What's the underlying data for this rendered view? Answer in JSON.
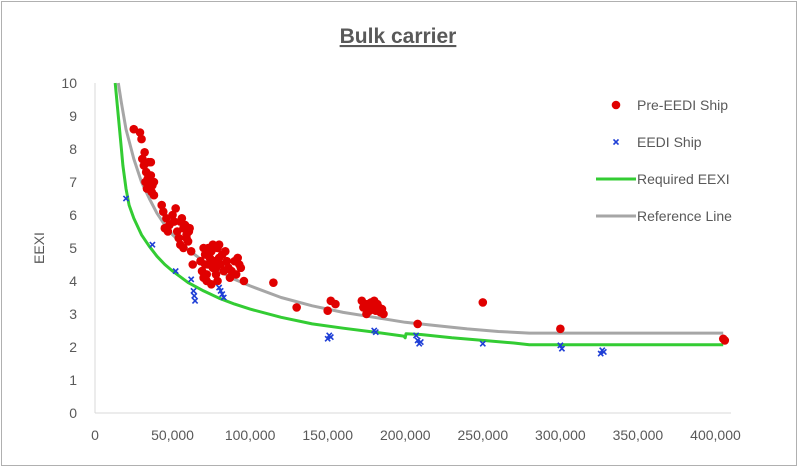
{
  "chart_data": {
    "type": "scatter",
    "title": "Bulk carrier",
    "xlabel": "",
    "ylabel": "EEXI",
    "xlim": [
      0,
      410000
    ],
    "ylim": [
      0,
      10
    ],
    "x_ticks": [
      "0",
      "50,000",
      "100,000",
      "150,000",
      "200,000",
      "250,000",
      "300,000",
      "350,000",
      "400,000"
    ],
    "y_ticks": [
      "0",
      "1",
      "2",
      "3",
      "4",
      "5",
      "6",
      "7",
      "8",
      "9",
      "10"
    ],
    "grid": false,
    "legend_position": "right",
    "series": [
      {
        "name": "Pre-EEDI Ship",
        "kind": "scatter",
        "marker": "circle",
        "color": "#e00000",
        "points": [
          [
            25000,
            8.6
          ],
          [
            29000,
            8.5
          ],
          [
            30000,
            8.3
          ],
          [
            30500,
            7.7
          ],
          [
            31500,
            7.5
          ],
          [
            32000,
            7.9
          ],
          [
            33000,
            7.3
          ],
          [
            34000,
            7.1
          ],
          [
            35000,
            6.9
          ],
          [
            36000,
            7.2
          ],
          [
            37000,
            6.9
          ],
          [
            38000,
            7.0
          ],
          [
            34500,
            7.6
          ],
          [
            33500,
            6.8
          ],
          [
            36500,
            6.7
          ],
          [
            38000,
            6.6
          ],
          [
            36000,
            7.6
          ],
          [
            32500,
            7.0
          ],
          [
            43000,
            6.3
          ],
          [
            44000,
            6.1
          ],
          [
            46000,
            5.9
          ],
          [
            48000,
            5.7
          ],
          [
            50000,
            6.0
          ],
          [
            51000,
            5.8
          ],
          [
            52000,
            6.2
          ],
          [
            53000,
            5.5
          ],
          [
            54000,
            5.3
          ],
          [
            55000,
            5.8
          ],
          [
            56000,
            5.9
          ],
          [
            57000,
            5.6
          ],
          [
            58000,
            5.7
          ],
          [
            59000,
            5.4
          ],
          [
            60000,
            5.2
          ],
          [
            61000,
            5.6
          ],
          [
            62000,
            4.9
          ],
          [
            63000,
            4.5
          ],
          [
            55000,
            5.1
          ],
          [
            57000,
            5.0
          ],
          [
            59000,
            5.3
          ],
          [
            60500,
            5.5
          ],
          [
            47000,
            5.5
          ],
          [
            45000,
            5.6
          ],
          [
            68000,
            4.6
          ],
          [
            69000,
            4.3
          ],
          [
            70000,
            5.0
          ],
          [
            71000,
            4.8
          ],
          [
            72000,
            4.2
          ],
          [
            73000,
            4.5
          ],
          [
            74000,
            4.7
          ],
          [
            75000,
            4.9
          ],
          [
            76000,
            4.4
          ],
          [
            77000,
            4.6
          ],
          [
            78000,
            4.2
          ],
          [
            79000,
            5.0
          ],
          [
            80000,
            4.7
          ],
          [
            81000,
            4.5
          ],
          [
            82000,
            4.8
          ],
          [
            83000,
            4.3
          ],
          [
            84000,
            4.9
          ],
          [
            85000,
            4.6
          ],
          [
            86000,
            4.4
          ],
          [
            87000,
            4.1
          ],
          [
            88000,
            4.3
          ],
          [
            90000,
            4.6
          ],
          [
            91000,
            4.2
          ],
          [
            92000,
            4.7
          ],
          [
            93000,
            4.5
          ],
          [
            94000,
            4.4
          ],
          [
            70000,
            4.1
          ],
          [
            72000,
            4.0
          ],
          [
            75000,
            3.9
          ],
          [
            78000,
            4.4
          ],
          [
            80000,
            5.1
          ],
          [
            76000,
            5.1
          ],
          [
            73000,
            5.0
          ],
          [
            96000,
            4.0
          ],
          [
            71000,
            4.5
          ],
          [
            79000,
            4.0
          ],
          [
            115000,
            3.95
          ],
          [
            130000,
            3.2
          ],
          [
            150000,
            3.1
          ],
          [
            152000,
            3.4
          ],
          [
            155000,
            3.3
          ],
          [
            172000,
            3.4
          ],
          [
            173000,
            3.2
          ],
          [
            175000,
            3.0
          ],
          [
            176000,
            3.3
          ],
          [
            177000,
            3.1
          ],
          [
            178000,
            3.35
          ],
          [
            179000,
            3.2
          ],
          [
            180000,
            3.4
          ],
          [
            181000,
            3.1
          ],
          [
            182000,
            3.3
          ],
          [
            183000,
            3.2
          ],
          [
            184000,
            3.05
          ],
          [
            185000,
            3.15
          ],
          [
            186000,
            3.0
          ],
          [
            174000,
            3.3
          ],
          [
            208000,
            2.7
          ],
          [
            250000,
            3.35
          ],
          [
            300000,
            2.55
          ],
          [
            405000,
            2.25
          ],
          [
            406000,
            2.2
          ]
        ]
      },
      {
        "name": "EEDI Ship",
        "kind": "scatter",
        "marker": "x",
        "color": "#1f3fd6",
        "points": [
          [
            20000,
            6.5
          ],
          [
            37000,
            5.1
          ],
          [
            52000,
            4.3
          ],
          [
            62000,
            4.05
          ],
          [
            63500,
            3.7
          ],
          [
            64000,
            3.55
          ],
          [
            64500,
            3.4
          ],
          [
            80000,
            3.8
          ],
          [
            81000,
            3.7
          ],
          [
            82000,
            3.6
          ],
          [
            83000,
            3.5
          ],
          [
            150000,
            2.25
          ],
          [
            151000,
            2.35
          ],
          [
            152000,
            2.3
          ],
          [
            180000,
            2.5
          ],
          [
            181000,
            2.45
          ],
          [
            207000,
            2.35
          ],
          [
            208000,
            2.2
          ],
          [
            209000,
            2.1
          ],
          [
            210000,
            2.15
          ],
          [
            250000,
            2.1
          ],
          [
            300000,
            2.05
          ],
          [
            301000,
            1.95
          ],
          [
            326000,
            1.8
          ],
          [
            327000,
            1.9
          ],
          [
            328000,
            1.85
          ]
        ]
      },
      {
        "name": "Required EEXI",
        "kind": "line",
        "color": "#33cc33",
        "points": [
          [
            13000,
            10.0
          ],
          [
            15000,
            9.0
          ],
          [
            17000,
            8.0
          ],
          [
            18000,
            7.5
          ],
          [
            20000,
            6.8
          ],
          [
            22000,
            6.3
          ],
          [
            25000,
            5.9
          ],
          [
            30000,
            5.4
          ],
          [
            35000,
            5.05
          ],
          [
            40000,
            4.75
          ],
          [
            45000,
            4.5
          ],
          [
            50000,
            4.3
          ],
          [
            60000,
            3.95
          ],
          [
            70000,
            3.7
          ],
          [
            80000,
            3.48
          ],
          [
            90000,
            3.3
          ],
          [
            100000,
            3.15
          ],
          [
            120000,
            2.9
          ],
          [
            140000,
            2.7
          ],
          [
            160000,
            2.57
          ],
          [
            180000,
            2.45
          ],
          [
            199000,
            2.33
          ],
          [
            200000,
            2.28
          ],
          [
            200500,
            2.4
          ],
          [
            210000,
            2.38
          ],
          [
            230000,
            2.28
          ],
          [
            250000,
            2.2
          ],
          [
            270000,
            2.12
          ],
          [
            280000,
            2.07
          ],
          [
            300000,
            2.07
          ],
          [
            350000,
            2.07
          ],
          [
            405000,
            2.07
          ]
        ]
      },
      {
        "name": "Reference Line",
        "kind": "line",
        "color": "#a6a6a6",
        "points": [
          [
            15000,
            10.0
          ],
          [
            17000,
            9.4
          ],
          [
            20000,
            8.6
          ],
          [
            25000,
            7.7
          ],
          [
            30000,
            7.0
          ],
          [
            35000,
            6.5
          ],
          [
            40000,
            6.05
          ],
          [
            45000,
            5.7
          ],
          [
            50000,
            5.4
          ],
          [
            60000,
            4.95
          ],
          [
            70000,
            4.6
          ],
          [
            80000,
            4.3
          ],
          [
            90000,
            4.05
          ],
          [
            100000,
            3.85
          ],
          [
            120000,
            3.5
          ],
          [
            140000,
            3.25
          ],
          [
            160000,
            3.05
          ],
          [
            180000,
            2.9
          ],
          [
            200000,
            2.75
          ],
          [
            220000,
            2.65
          ],
          [
            240000,
            2.55
          ],
          [
            260000,
            2.47
          ],
          [
            280000,
            2.42
          ],
          [
            300000,
            2.42
          ],
          [
            350000,
            2.42
          ],
          [
            405000,
            2.42
          ]
        ]
      }
    ]
  }
}
